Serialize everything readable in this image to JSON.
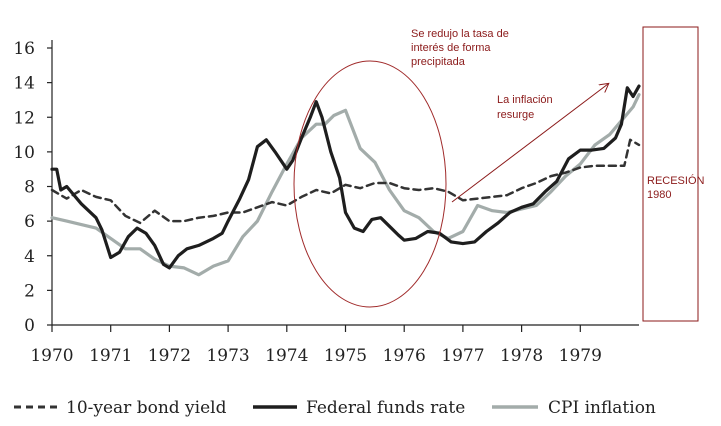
{
  "chart_data": {
    "type": "line",
    "title": "",
    "xlabel": "",
    "ylabel": "",
    "xlim": [
      1970,
      1980
    ],
    "ylim": [
      0,
      16
    ],
    "x_ticks": [
      "1970",
      "1971",
      "1972",
      "1973",
      "1974",
      "1975",
      "1976",
      "1977",
      "1978",
      "1979"
    ],
    "y_ticks": [
      "0",
      "2",
      "4",
      "6",
      "8",
      "10",
      "12",
      "14",
      "16"
    ],
    "grid": false,
    "legend_position": "bottom",
    "series": [
      {
        "name": "10-year bond yield",
        "style": "dashed",
        "color": "#333333",
        "points": [
          [
            1970.0,
            7.8
          ],
          [
            1970.25,
            7.3
          ],
          [
            1970.5,
            7.8
          ],
          [
            1970.75,
            7.4
          ],
          [
            1971.0,
            7.2
          ],
          [
            1971.25,
            6.3
          ],
          [
            1971.5,
            5.9
          ],
          [
            1971.75,
            6.6
          ],
          [
            1972.0,
            6.0
          ],
          [
            1972.25,
            6.0
          ],
          [
            1972.5,
            6.2
          ],
          [
            1972.75,
            6.3
          ],
          [
            1973.0,
            6.5
          ],
          [
            1973.25,
            6.5
          ],
          [
            1973.5,
            6.8
          ],
          [
            1973.75,
            7.1
          ],
          [
            1974.0,
            6.9
          ],
          [
            1974.25,
            7.4
          ],
          [
            1974.5,
            7.8
          ],
          [
            1974.75,
            7.6
          ],
          [
            1975.0,
            8.1
          ],
          [
            1975.25,
            7.9
          ],
          [
            1975.5,
            8.2
          ],
          [
            1975.75,
            8.2
          ],
          [
            1976.0,
            7.9
          ],
          [
            1976.25,
            7.8
          ],
          [
            1976.5,
            7.9
          ],
          [
            1976.75,
            7.7
          ],
          [
            1977.0,
            7.2
          ],
          [
            1977.25,
            7.3
          ],
          [
            1977.5,
            7.4
          ],
          [
            1977.75,
            7.5
          ],
          [
            1978.0,
            7.9
          ],
          [
            1978.25,
            8.2
          ],
          [
            1978.5,
            8.6
          ],
          [
            1978.75,
            8.8
          ],
          [
            1979.0,
            9.1
          ],
          [
            1979.25,
            9.2
          ],
          [
            1979.5,
            9.2
          ],
          [
            1979.75,
            9.2
          ],
          [
            1979.85,
            10.7
          ],
          [
            1980.0,
            10.4
          ]
        ]
      },
      {
        "name": "Federal funds rate",
        "style": "solid",
        "color": "#1e1e1e",
        "points": [
          [
            1970.0,
            9.0
          ],
          [
            1970.08,
            9.0
          ],
          [
            1970.15,
            7.8
          ],
          [
            1970.25,
            8.0
          ],
          [
            1970.5,
            7.0
          ],
          [
            1970.75,
            6.2
          ],
          [
            1970.85,
            5.5
          ],
          [
            1971.0,
            3.9
          ],
          [
            1971.15,
            4.2
          ],
          [
            1971.3,
            5.1
          ],
          [
            1971.45,
            5.6
          ],
          [
            1971.6,
            5.3
          ],
          [
            1971.75,
            4.6
          ],
          [
            1971.9,
            3.5
          ],
          [
            1972.0,
            3.3
          ],
          [
            1972.15,
            4.0
          ],
          [
            1972.3,
            4.4
          ],
          [
            1972.5,
            4.6
          ],
          [
            1972.75,
            5.0
          ],
          [
            1972.9,
            5.3
          ],
          [
            1973.0,
            6.0
          ],
          [
            1973.2,
            7.3
          ],
          [
            1973.35,
            8.4
          ],
          [
            1973.5,
            10.3
          ],
          [
            1973.65,
            10.7
          ],
          [
            1973.8,
            10.0
          ],
          [
            1974.0,
            9.0
          ],
          [
            1974.1,
            9.5
          ],
          [
            1974.25,
            10.8
          ],
          [
            1974.4,
            12.0
          ],
          [
            1974.5,
            12.9
          ],
          [
            1974.6,
            12.0
          ],
          [
            1974.75,
            10.0
          ],
          [
            1974.9,
            8.5
          ],
          [
            1975.0,
            6.5
          ],
          [
            1975.15,
            5.6
          ],
          [
            1975.3,
            5.4
          ],
          [
            1975.45,
            6.1
          ],
          [
            1975.6,
            6.2
          ],
          [
            1975.75,
            5.7
          ],
          [
            1975.9,
            5.2
          ],
          [
            1976.0,
            4.9
          ],
          [
            1976.2,
            5.0
          ],
          [
            1976.4,
            5.4
          ],
          [
            1976.6,
            5.3
          ],
          [
            1976.8,
            4.8
          ],
          [
            1977.0,
            4.7
          ],
          [
            1977.2,
            4.8
          ],
          [
            1977.4,
            5.4
          ],
          [
            1977.6,
            5.9
          ],
          [
            1977.8,
            6.5
          ],
          [
            1978.0,
            6.8
          ],
          [
            1978.2,
            7.0
          ],
          [
            1978.4,
            7.7
          ],
          [
            1978.6,
            8.3
          ],
          [
            1978.8,
            9.6
          ],
          [
            1979.0,
            10.1
          ],
          [
            1979.2,
            10.1
          ],
          [
            1979.4,
            10.2
          ],
          [
            1979.6,
            10.8
          ],
          [
            1979.7,
            11.6
          ],
          [
            1979.8,
            13.7
          ],
          [
            1979.9,
            13.2
          ],
          [
            1980.0,
            13.8
          ]
        ]
      },
      {
        "name": "CPI inflation",
        "style": "solid",
        "color": "#a3acaa",
        "points": [
          [
            1970.0,
            6.2
          ],
          [
            1970.25,
            6.0
          ],
          [
            1970.5,
            5.8
          ],
          [
            1970.75,
            5.6
          ],
          [
            1971.0,
            5.0
          ],
          [
            1971.25,
            4.4
          ],
          [
            1971.5,
            4.4
          ],
          [
            1971.75,
            3.8
          ],
          [
            1972.0,
            3.4
          ],
          [
            1972.25,
            3.3
          ],
          [
            1972.5,
            2.9
          ],
          [
            1972.75,
            3.4
          ],
          [
            1973.0,
            3.7
          ],
          [
            1973.25,
            5.1
          ],
          [
            1973.5,
            6.0
          ],
          [
            1973.75,
            7.7
          ],
          [
            1974.0,
            9.3
          ],
          [
            1974.25,
            10.8
          ],
          [
            1974.5,
            11.6
          ],
          [
            1974.65,
            11.6
          ],
          [
            1974.8,
            12.1
          ],
          [
            1975.0,
            12.4
          ],
          [
            1975.25,
            10.2
          ],
          [
            1975.5,
            9.4
          ],
          [
            1975.75,
            7.8
          ],
          [
            1976.0,
            6.6
          ],
          [
            1976.25,
            6.2
          ],
          [
            1976.5,
            5.4
          ],
          [
            1976.75,
            5.0
          ],
          [
            1977.0,
            5.4
          ],
          [
            1977.25,
            6.9
          ],
          [
            1977.5,
            6.6
          ],
          [
            1977.75,
            6.5
          ],
          [
            1978.0,
            6.7
          ],
          [
            1978.25,
            6.9
          ],
          [
            1978.5,
            7.7
          ],
          [
            1978.75,
            8.6
          ],
          [
            1979.0,
            9.3
          ],
          [
            1979.25,
            10.4
          ],
          [
            1979.5,
            11.0
          ],
          [
            1979.75,
            12.0
          ],
          [
            1979.9,
            12.6
          ],
          [
            1980.0,
            13.3
          ]
        ]
      }
    ],
    "legend": [
      {
        "label": "10-year bond yield",
        "style": "dashed",
        "color": "#333333"
      },
      {
        "label": "Federal funds rate",
        "style": "solid",
        "color": "#1e1e1e"
      },
      {
        "label": "CPI inflation",
        "style": "solid",
        "color": "#a3acaa"
      }
    ],
    "annotations": {
      "circle_text": [
        "Se redujo la tasa de",
        "interés de forma",
        "precipitada"
      ],
      "arrow_text": [
        "La inflación",
        "resurge"
      ],
      "recession_text": [
        "RECESIÓN",
        "1980"
      ],
      "accent_color": "#8b1a1a"
    }
  }
}
